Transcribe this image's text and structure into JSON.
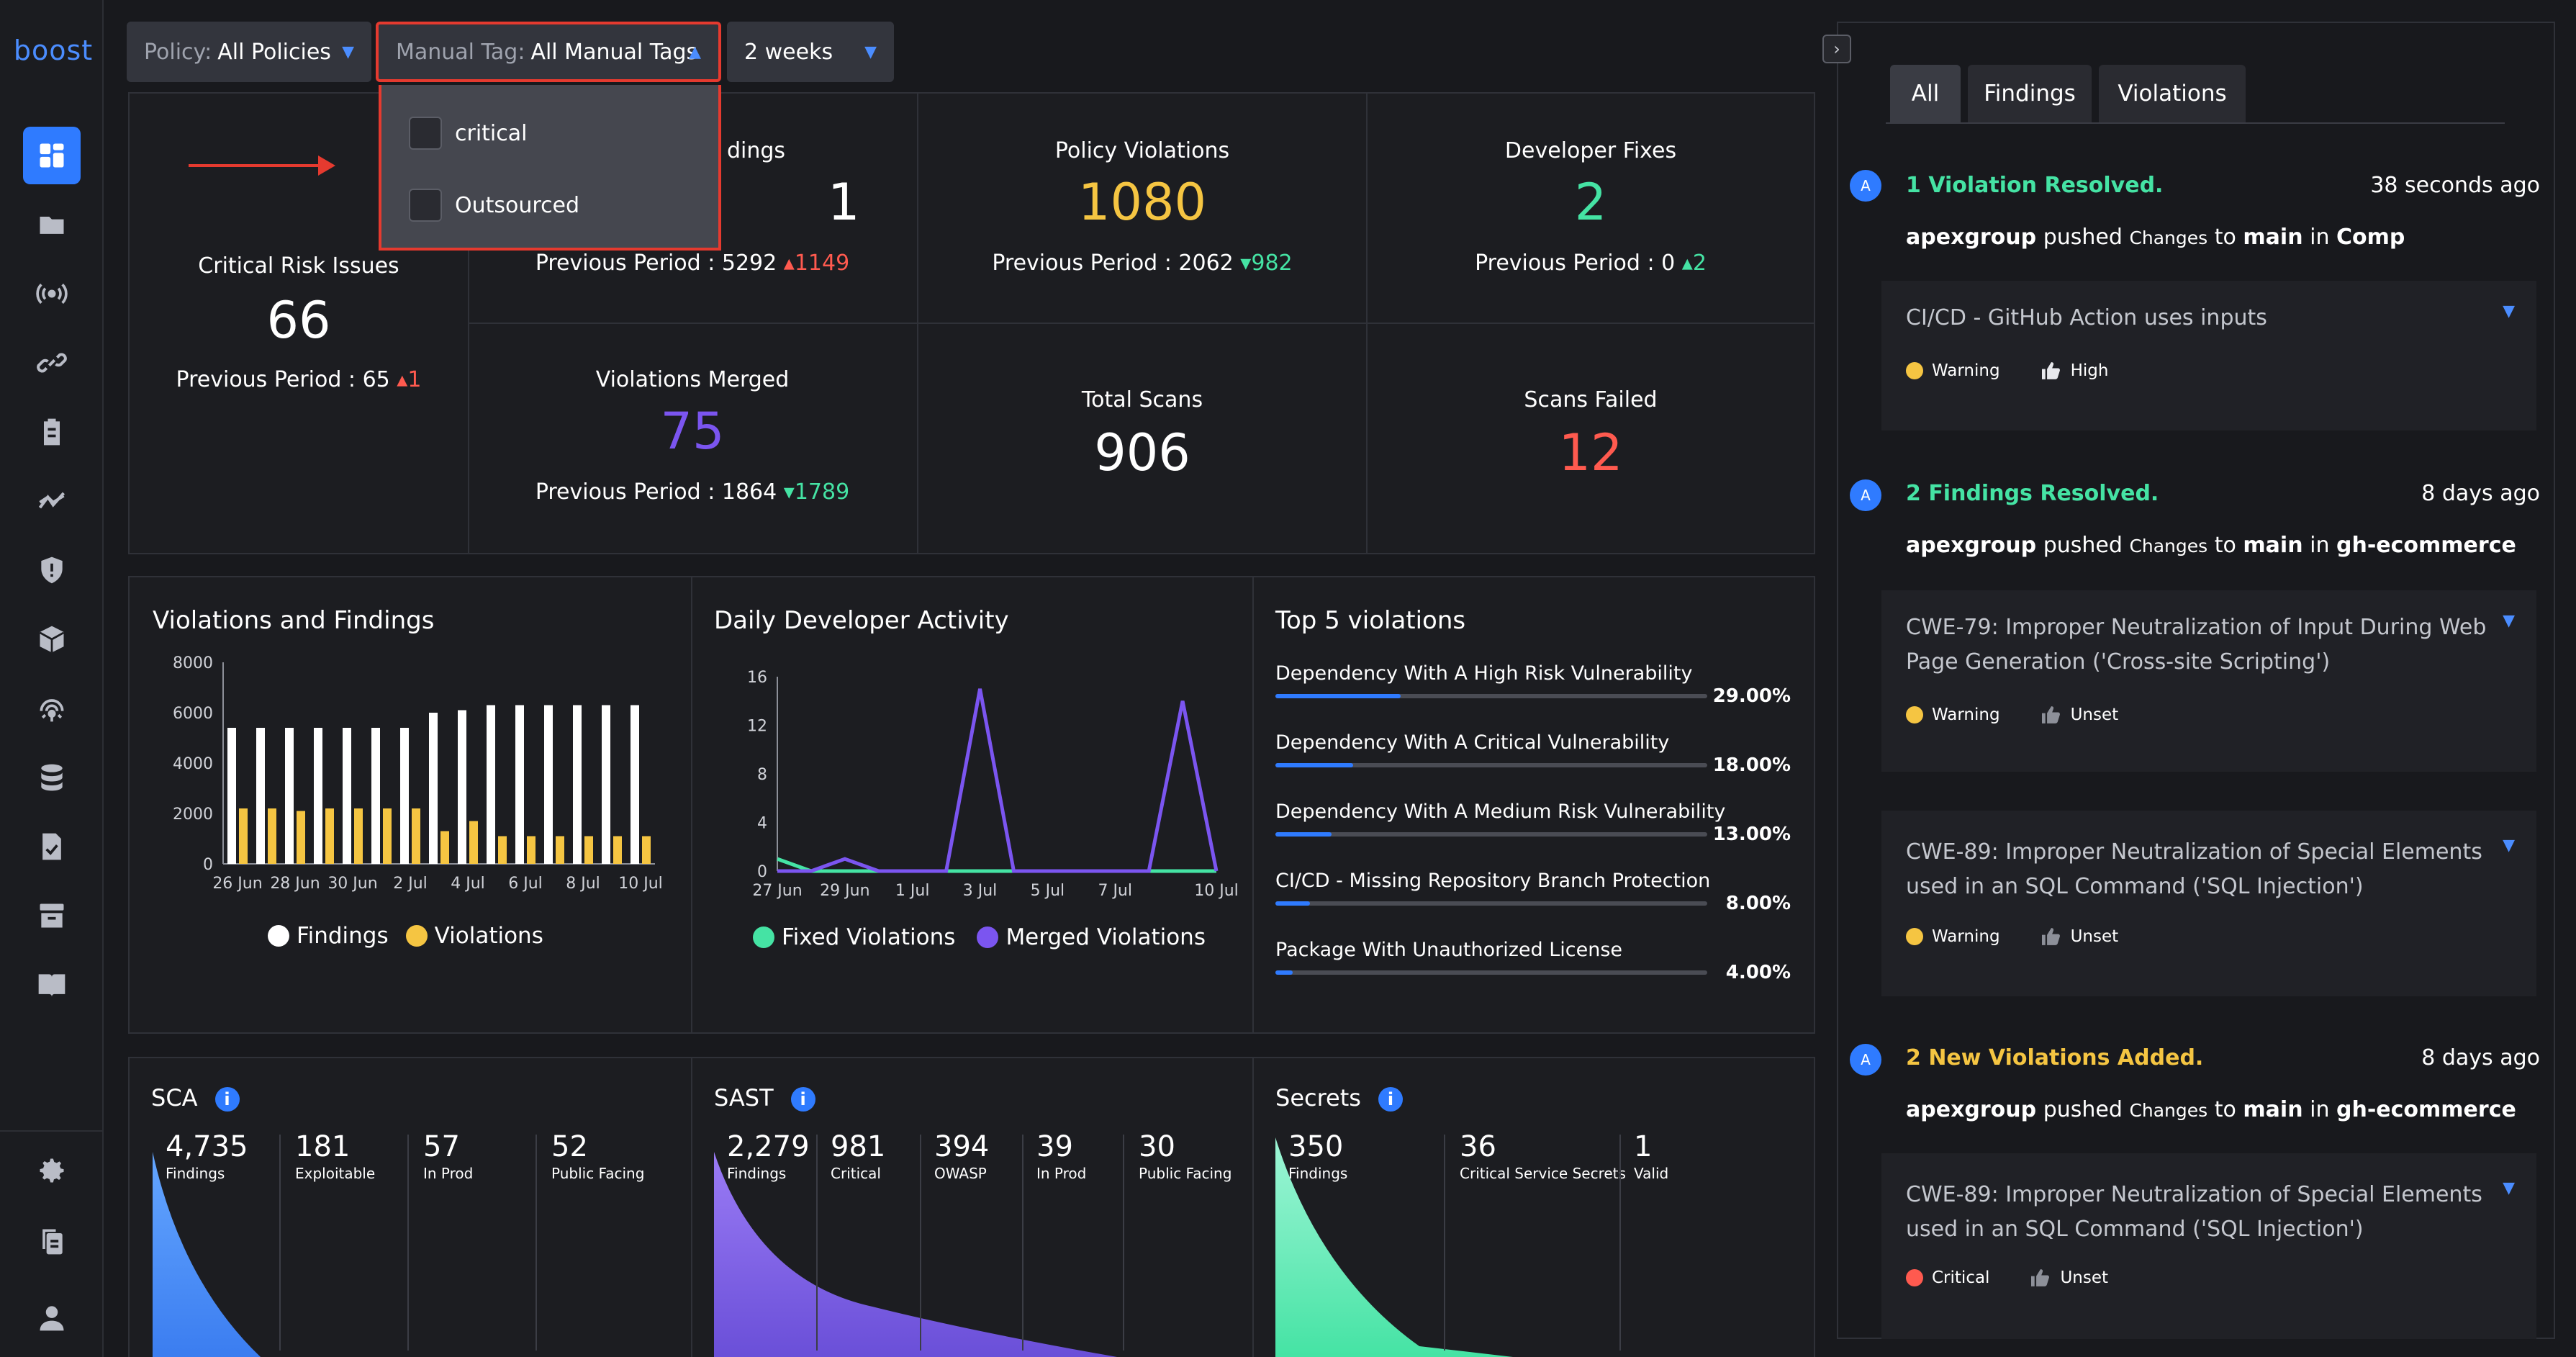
{
  "brand": {
    "logo": "boost",
    "accent": "#2f7bff"
  },
  "sidebar": {
    "items": [
      {
        "icon": "dashboard-icon"
      },
      {
        "icon": "folder-icon"
      },
      {
        "icon": "broadcast-icon"
      },
      {
        "icon": "link-icon"
      },
      {
        "icon": "clipboard-icon"
      },
      {
        "icon": "trend-icon"
      },
      {
        "icon": "shield-icon"
      },
      {
        "icon": "package-icon"
      },
      {
        "icon": "radar-icon"
      },
      {
        "icon": "database-icon"
      },
      {
        "icon": "document-check-icon"
      },
      {
        "icon": "archive-icon"
      },
      {
        "icon": "book-icon"
      }
    ],
    "bottom": [
      {
        "icon": "gear-icon"
      },
      {
        "icon": "copy-icon"
      },
      {
        "icon": "user-icon"
      }
    ]
  },
  "filters": {
    "policy": {
      "label": "Policy:",
      "value": "All Policies"
    },
    "manual_tag": {
      "label": "Manual Tag:",
      "value": "All Manual Tags",
      "options": [
        "critical",
        "Outsourced"
      ]
    },
    "period": {
      "value": "2 weeks"
    }
  },
  "stats": {
    "critical": {
      "title": "Critical Risk Issues",
      "value": "66",
      "prev_label": "Previous Period : 65",
      "delta": "1"
    },
    "findings": {
      "title": "dings",
      "value": "1",
      "prev_label": "Previous Period : 5292",
      "delta": "1149"
    },
    "policy_violations": {
      "title": "Policy Violations",
      "value": "1080",
      "prev_label": "Previous Period : 2062",
      "delta": "982"
    },
    "developer_fixes": {
      "title": "Developer Fixes",
      "value": "2",
      "prev_label": "Previous Period : 0",
      "delta": "2"
    },
    "violations_merged": {
      "title": "Violations Merged",
      "value": "75",
      "prev_label": "Previous Period : 1864",
      "delta": "1789"
    },
    "total_scans": {
      "title": "Total Scans",
      "value": "906"
    },
    "scans_failed": {
      "title": "Scans Failed",
      "value": "12"
    }
  },
  "colors": {
    "yellow": "#f5c542",
    "green": "#45e3a4",
    "purple": "#7b55f0",
    "red": "#ff5a4f",
    "blue": "#2f7bff"
  },
  "chart_data": [
    {
      "type": "bar",
      "title": "Violations and Findings",
      "categories": [
        "26 Jun",
        "27 Jun",
        "28 Jun",
        "29 Jun",
        "30 Jun",
        "1 Jul",
        "2 Jul",
        "3 Jul",
        "4 Jul",
        "5 Jul",
        "6 Jul",
        "7 Jul",
        "8 Jul",
        "9 Jul",
        "10 Jul"
      ],
      "x_tick_labels": [
        "26 Jun",
        "28 Jun",
        "30 Jun",
        "2 Jul",
        "4 Jul",
        "6 Jul",
        "8 Jul",
        "10 Jul"
      ],
      "y_ticks": [
        "0",
        "2000",
        "4000",
        "6000",
        "8000"
      ],
      "ylim": [
        0,
        8000
      ],
      "series": [
        {
          "name": "Findings",
          "color": "#ffffff",
          "values": [
            5400,
            5400,
            5400,
            5400,
            5400,
            5400,
            5400,
            6000,
            6100,
            6300,
            6300,
            6300,
            6300,
            6300,
            6300
          ]
        },
        {
          "name": "Violations",
          "color": "#f5c542",
          "values": [
            2200,
            2200,
            2100,
            2200,
            2200,
            2200,
            2200,
            1300,
            1700,
            1100,
            1100,
            1100,
            1100,
            1100,
            1100
          ]
        }
      ],
      "legend": "bottom"
    },
    {
      "type": "line",
      "title": "Daily Developer Activity",
      "x": [
        "27 Jun",
        "28 Jun",
        "29 Jun",
        "30 Jun",
        "1 Jul",
        "2 Jul",
        "3 Jul",
        "4 Jul",
        "5 Jul",
        "6 Jul",
        "7 Jul",
        "8 Jul",
        "9 Jul",
        "10 Jul"
      ],
      "x_tick_labels": [
        "27 Jun",
        "29 Jun",
        "1 Jul",
        "3 Jul",
        "5 Jul",
        "7 Jul",
        "10 Jul"
      ],
      "y_ticks": [
        "0",
        "4",
        "8",
        "12",
        "16"
      ],
      "ylim": [
        0,
        16
      ],
      "series": [
        {
          "name": "Fixed Violations",
          "color": "#45e3a4",
          "values": [
            1,
            0,
            0,
            0,
            0,
            0,
            0,
            0,
            0,
            0,
            0,
            0,
            0,
            0
          ]
        },
        {
          "name": "Merged Violations",
          "color": "#7b55f0",
          "values": [
            0,
            0,
            1,
            0,
            0,
            0,
            15,
            0,
            0,
            0,
            0,
            0,
            14,
            0
          ]
        }
      ],
      "legend": "bottom"
    }
  ],
  "top_violations": {
    "title": "Top 5 violations",
    "items": [
      {
        "name": "Dependency With A High Risk Vulnerability",
        "pct": "29.00%",
        "value": 29
      },
      {
        "name": "Dependency With A Critical Vulnerability",
        "pct": "18.00%",
        "value": 18
      },
      {
        "name": "Dependency With A Medium Risk Vulnerability",
        "pct": "13.00%",
        "value": 13
      },
      {
        "name": "CI/CD - Missing Repository Branch Protection",
        "pct": "8.00%",
        "value": 8
      },
      {
        "name": "Package With Unauthorized License",
        "pct": "4.00%",
        "value": 4
      }
    ]
  },
  "cards": {
    "sca": {
      "title": "SCA",
      "stats": [
        {
          "n": "4,735",
          "l": "Findings"
        },
        {
          "n": "181",
          "l": "Exploitable"
        },
        {
          "n": "57",
          "l": "In Prod"
        },
        {
          "n": "52",
          "l": "Public Facing"
        }
      ]
    },
    "sast": {
      "title": "SAST",
      "stats": [
        {
          "n": "2,279",
          "l": "Findings"
        },
        {
          "n": "981",
          "l": "Critical"
        },
        {
          "n": "394",
          "l": "OWASP"
        },
        {
          "n": "39",
          "l": "In Prod"
        },
        {
          "n": "30",
          "l": "Public Facing"
        }
      ]
    },
    "secrets": {
      "title": "Secrets",
      "stats": [
        {
          "n": "350",
          "l": "Findings"
        },
        {
          "n": "36",
          "l": "Critical Service Secrets"
        },
        {
          "n": "1",
          "l": "Valid"
        }
      ]
    }
  },
  "activity": {
    "tabs": [
      "All",
      "Findings",
      "Violations"
    ],
    "events": [
      {
        "avatar": "A",
        "title": "1 Violation Resolved.",
        "title_color": "#45e3a4",
        "time": "38 seconds ago",
        "user": "apexgroup",
        "action": "pushed",
        "changes": "Changes",
        "to": "to",
        "branch": "main",
        "in": "in",
        "repo": "Comp",
        "cards": [
          {
            "text": "CI/CD - GitHub Action uses inputs",
            "severity": "Warning",
            "severity_color": "#f5c542",
            "rating": "High"
          }
        ]
      },
      {
        "avatar": "A",
        "title": "2 Findings Resolved.",
        "title_color": "#45e3a4",
        "time": "8 days ago",
        "user": "apexgroup",
        "action": "pushed",
        "changes": "Changes",
        "to": "to",
        "branch": "main",
        "in": "in",
        "repo": "gh-ecommerce",
        "cards": [
          {
            "text": "CWE-79: Improper Neutralization of Input During Web Page Generation ('Cross-site Scripting')",
            "severity": "Warning",
            "severity_color": "#f5c542",
            "rating": "Unset"
          },
          {
            "text": "CWE-89: Improper Neutralization of Special Elements used in an SQL Command ('SQL Injection')",
            "severity": "Warning",
            "severity_color": "#f5c542",
            "rating": "Unset"
          }
        ]
      },
      {
        "avatar": "A",
        "title": "2 New Violations Added.",
        "title_color": "#f5c542",
        "time": "8 days ago",
        "user": "apexgroup",
        "action": "pushed",
        "changes": "Changes",
        "to": "to",
        "branch": "main",
        "in": "in",
        "repo": "gh-ecommerce",
        "cards": [
          {
            "text": "CWE-89: Improper Neutralization of Special Elements used in an SQL Command ('SQL Injection')",
            "severity": "Critical",
            "severity_color": "#ff5a4f",
            "rating": "Unset"
          }
        ]
      }
    ]
  }
}
